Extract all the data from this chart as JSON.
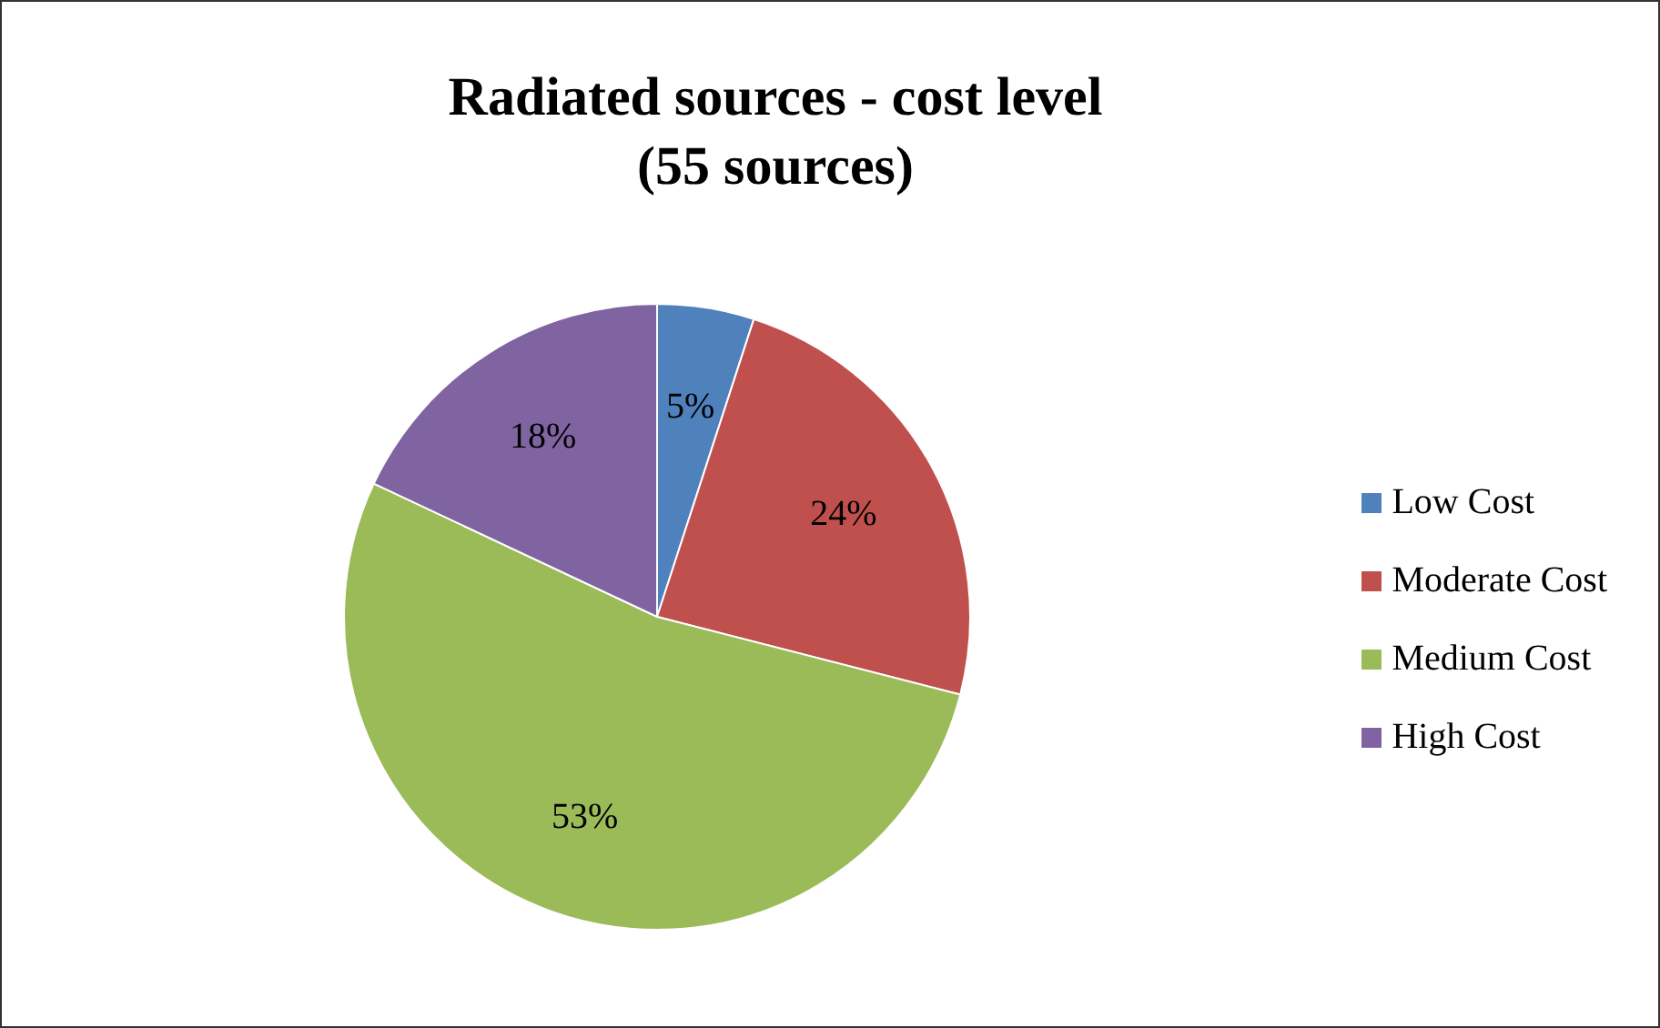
{
  "chart_data": {
    "type": "pie",
    "title": "Radiated sources - cost level\n(55 sources)",
    "categories": [
      "Low Cost",
      "Moderate Cost",
      "Medium Cost",
      "High Cost"
    ],
    "values": [
      5,
      24,
      53,
      18
    ],
    "colors": [
      "#4f81bd",
      "#c0504d",
      "#9bbb59",
      "#8064a2"
    ],
    "value_labels": [
      "5%",
      "24%",
      "53%",
      "18%"
    ],
    "legend": "right"
  }
}
